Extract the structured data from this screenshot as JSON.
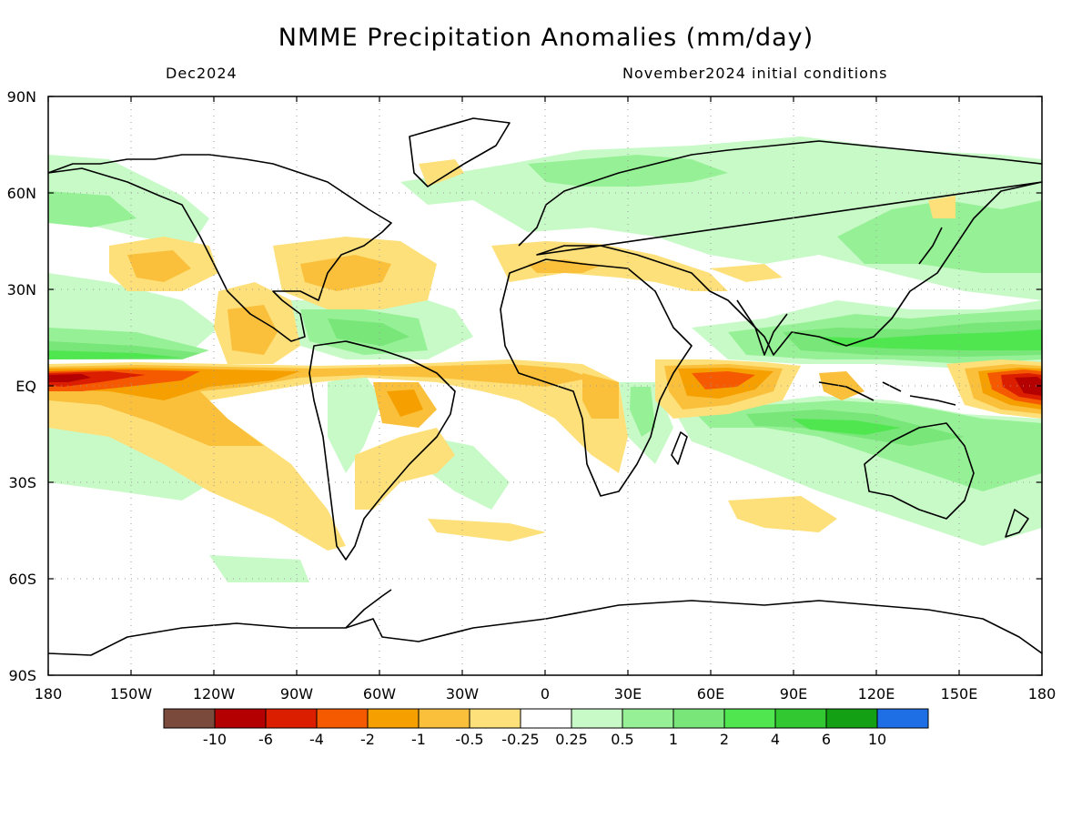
{
  "title": "NMME Precipitation Anomalies (mm/day)",
  "subtitle_left": "Dec2024",
  "subtitle_right": "November2024 initial conditions",
  "lat_ticks": [
    "90N",
    "60N",
    "30N",
    "EQ",
    "30S",
    "60S",
    "90S"
  ],
  "lon_ticks": [
    "180",
    "150W",
    "120W",
    "90W",
    "60W",
    "30W",
    "0",
    "30E",
    "60E",
    "90E",
    "120E",
    "150E",
    "180"
  ],
  "colorbar": {
    "colors": [
      "#7a4a3c",
      "#b40000",
      "#dc1e00",
      "#f55a00",
      "#f5a000",
      "#fac03c",
      "#fde07a",
      "#ffffff",
      "#c8fac8",
      "#96f096",
      "#78e678",
      "#50e650",
      "#32c832",
      "#14a014",
      "#1e6ee6"
    ],
    "labels": [
      "-10",
      "-6",
      "-4",
      "-2",
      "-1",
      "-0.5",
      "-0.25",
      "0.25",
      "0.5",
      "1",
      "2",
      "4",
      "6",
      "10"
    ]
  },
  "chart_data": {
    "type": "map",
    "variable": "Precipitation anomaly",
    "units": "mm/day",
    "valid_month": "Dec2024",
    "initial_conditions": "November2024",
    "lon_range": [
      -180,
      180
    ],
    "lat_range": [
      -90,
      90
    ],
    "levels": [
      -10,
      -6,
      -4,
      -2,
      -1,
      -0.5,
      -0.25,
      0.25,
      0.5,
      1,
      2,
      4,
      6,
      10
    ],
    "anomaly_regions": [
      {
        "name": "central-pacific-dry",
        "lon": [
          -180,
          -120
        ],
        "lat": [
          -8,
          6
        ],
        "value": -6
      },
      {
        "name": "east-pacific-dry-tongue",
        "lon": [
          -175,
          -110
        ],
        "lat": [
          -18,
          0
        ],
        "value": -1
      },
      {
        "name": "south-pacific-dry-band",
        "lon": [
          -150,
          -75
        ],
        "lat": [
          -45,
          -20
        ],
        "value": -0.5
      },
      {
        "name": "western-pacific-dry",
        "lon": [
          155,
          180
        ],
        "lat": [
          -6,
          6
        ],
        "value": -6
      },
      {
        "name": "west-indian-ocean-dry",
        "lon": [
          40,
          85
        ],
        "lat": [
          -8,
          6
        ],
        "value": -2
      },
      {
        "name": "east-indian-ocean-wet",
        "lon": [
          80,
          130
        ],
        "lat": [
          -15,
          5
        ],
        "value": 1
      },
      {
        "name": "maritime-continent-wet",
        "lon": [
          100,
          160
        ],
        "lat": [
          5,
          20
        ],
        "value": 2
      },
      {
        "name": "north-pacific-wet",
        "lon": [
          -180,
          -130
        ],
        "lat": [
          10,
          20
        ],
        "value": 1
      },
      {
        "name": "caribbean-wet",
        "lon": [
          -90,
          -60
        ],
        "lat": [
          10,
          25
        ],
        "value": 1
      },
      {
        "name": "southern-africa-wet",
        "lon": [
          20,
          40
        ],
        "lat": [
          -30,
          -10
        ],
        "value": 1
      },
      {
        "name": "australia-wet",
        "lon": [
          115,
          155
        ],
        "lat": [
          -40,
          -15
        ],
        "value": 0.5
      },
      {
        "name": "mediterranean-dry",
        "lon": [
          -10,
          40
        ],
        "lat": [
          30,
          45
        ],
        "value": -0.5
      },
      {
        "name": "north-atlantic-dry",
        "lon": [
          -70,
          -30
        ],
        "lat": [
          25,
          45
        ],
        "value": -0.5
      },
      {
        "name": "brazil-dry",
        "lon": [
          -65,
          -35
        ],
        "lat": [
          -20,
          0
        ],
        "value": -1
      }
    ]
  }
}
